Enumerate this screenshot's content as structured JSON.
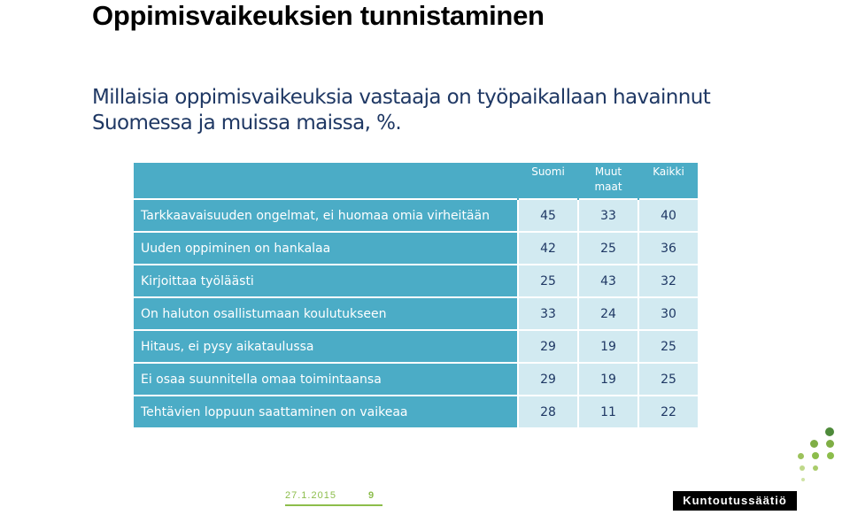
{
  "title": "Oppimisvaikeuksien tunnistaminen",
  "subtitle": "Millaisia oppimisvaikeuksia vastaaja on työpaikallaan havainnut Suomessa ja muissa maissa, %.",
  "table": {
    "headers": [
      "",
      "Suomi",
      "Muut maat",
      "Kaikki"
    ],
    "rows": [
      {
        "label": "Tarkkaavaisuuden ongelmat, ei huomaa omia virheitään",
        "values": [
          "45",
          "33",
          "40"
        ]
      },
      {
        "label": "Uuden oppiminen on hankalaa",
        "values": [
          "42",
          "25",
          "36"
        ]
      },
      {
        "label": "Kirjoittaa työläästi",
        "values": [
          "25",
          "43",
          "32"
        ]
      },
      {
        "label": "On haluton osallistumaan koulutukseen",
        "values": [
          "33",
          "24",
          "30"
        ]
      },
      {
        "label": "Hitaus, ei pysy aikataulussa",
        "values": [
          "29",
          "19",
          "25"
        ]
      },
      {
        "label": "Ei osaa suunnitella omaa toimintaansa",
        "values": [
          "29",
          "19",
          "25"
        ]
      },
      {
        "label": "Tehtävien loppuun saattaminen on vaikeaa",
        "values": [
          "28",
          "11",
          "22"
        ]
      }
    ]
  },
  "footer": {
    "date": "27.1.2015",
    "page": "9",
    "brand": "Kuntoutussäätiö"
  },
  "colors": {
    "header_bg": "#4bacc6",
    "cell_bg": "#d2eaf1",
    "text_dark": "#1f3864",
    "accent_green": "#8cbd4b"
  }
}
